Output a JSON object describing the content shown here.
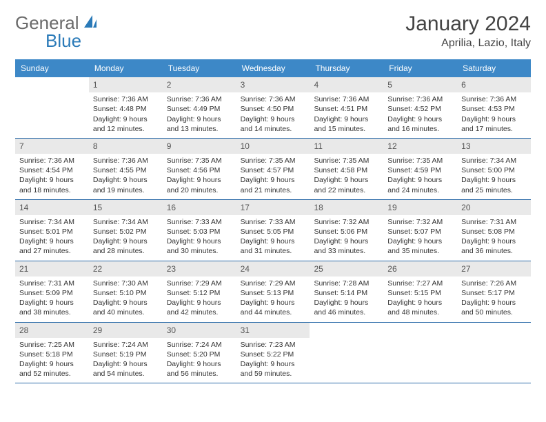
{
  "logo": {
    "text1": "General",
    "text2": "Blue"
  },
  "title": "January 2024",
  "location": "Aprilia, Lazio, Italy",
  "header_color": "#3d88c7",
  "daynum_bg": "#e9e9e9",
  "border_color": "#2a6aa8",
  "weekdays": [
    "Sunday",
    "Monday",
    "Tuesday",
    "Wednesday",
    "Thursday",
    "Friday",
    "Saturday"
  ],
  "weeks": [
    [
      {
        "n": "",
        "sr": "",
        "ss": "",
        "dl": ""
      },
      {
        "n": "1",
        "sr": "Sunrise: 7:36 AM",
        "ss": "Sunset: 4:48 PM",
        "dl": "Daylight: 9 hours and 12 minutes."
      },
      {
        "n": "2",
        "sr": "Sunrise: 7:36 AM",
        "ss": "Sunset: 4:49 PM",
        "dl": "Daylight: 9 hours and 13 minutes."
      },
      {
        "n": "3",
        "sr": "Sunrise: 7:36 AM",
        "ss": "Sunset: 4:50 PM",
        "dl": "Daylight: 9 hours and 14 minutes."
      },
      {
        "n": "4",
        "sr": "Sunrise: 7:36 AM",
        "ss": "Sunset: 4:51 PM",
        "dl": "Daylight: 9 hours and 15 minutes."
      },
      {
        "n": "5",
        "sr": "Sunrise: 7:36 AM",
        "ss": "Sunset: 4:52 PM",
        "dl": "Daylight: 9 hours and 16 minutes."
      },
      {
        "n": "6",
        "sr": "Sunrise: 7:36 AM",
        "ss": "Sunset: 4:53 PM",
        "dl": "Daylight: 9 hours and 17 minutes."
      }
    ],
    [
      {
        "n": "7",
        "sr": "Sunrise: 7:36 AM",
        "ss": "Sunset: 4:54 PM",
        "dl": "Daylight: 9 hours and 18 minutes."
      },
      {
        "n": "8",
        "sr": "Sunrise: 7:36 AM",
        "ss": "Sunset: 4:55 PM",
        "dl": "Daylight: 9 hours and 19 minutes."
      },
      {
        "n": "9",
        "sr": "Sunrise: 7:35 AM",
        "ss": "Sunset: 4:56 PM",
        "dl": "Daylight: 9 hours and 20 minutes."
      },
      {
        "n": "10",
        "sr": "Sunrise: 7:35 AM",
        "ss": "Sunset: 4:57 PM",
        "dl": "Daylight: 9 hours and 21 minutes."
      },
      {
        "n": "11",
        "sr": "Sunrise: 7:35 AM",
        "ss": "Sunset: 4:58 PM",
        "dl": "Daylight: 9 hours and 22 minutes."
      },
      {
        "n": "12",
        "sr": "Sunrise: 7:35 AM",
        "ss": "Sunset: 4:59 PM",
        "dl": "Daylight: 9 hours and 24 minutes."
      },
      {
        "n": "13",
        "sr": "Sunrise: 7:34 AM",
        "ss": "Sunset: 5:00 PM",
        "dl": "Daylight: 9 hours and 25 minutes."
      }
    ],
    [
      {
        "n": "14",
        "sr": "Sunrise: 7:34 AM",
        "ss": "Sunset: 5:01 PM",
        "dl": "Daylight: 9 hours and 27 minutes."
      },
      {
        "n": "15",
        "sr": "Sunrise: 7:34 AM",
        "ss": "Sunset: 5:02 PM",
        "dl": "Daylight: 9 hours and 28 minutes."
      },
      {
        "n": "16",
        "sr": "Sunrise: 7:33 AM",
        "ss": "Sunset: 5:03 PM",
        "dl": "Daylight: 9 hours and 30 minutes."
      },
      {
        "n": "17",
        "sr": "Sunrise: 7:33 AM",
        "ss": "Sunset: 5:05 PM",
        "dl": "Daylight: 9 hours and 31 minutes."
      },
      {
        "n": "18",
        "sr": "Sunrise: 7:32 AM",
        "ss": "Sunset: 5:06 PM",
        "dl": "Daylight: 9 hours and 33 minutes."
      },
      {
        "n": "19",
        "sr": "Sunrise: 7:32 AM",
        "ss": "Sunset: 5:07 PM",
        "dl": "Daylight: 9 hours and 35 minutes."
      },
      {
        "n": "20",
        "sr": "Sunrise: 7:31 AM",
        "ss": "Sunset: 5:08 PM",
        "dl": "Daylight: 9 hours and 36 minutes."
      }
    ],
    [
      {
        "n": "21",
        "sr": "Sunrise: 7:31 AM",
        "ss": "Sunset: 5:09 PM",
        "dl": "Daylight: 9 hours and 38 minutes."
      },
      {
        "n": "22",
        "sr": "Sunrise: 7:30 AM",
        "ss": "Sunset: 5:10 PM",
        "dl": "Daylight: 9 hours and 40 minutes."
      },
      {
        "n": "23",
        "sr": "Sunrise: 7:29 AM",
        "ss": "Sunset: 5:12 PM",
        "dl": "Daylight: 9 hours and 42 minutes."
      },
      {
        "n": "24",
        "sr": "Sunrise: 7:29 AM",
        "ss": "Sunset: 5:13 PM",
        "dl": "Daylight: 9 hours and 44 minutes."
      },
      {
        "n": "25",
        "sr": "Sunrise: 7:28 AM",
        "ss": "Sunset: 5:14 PM",
        "dl": "Daylight: 9 hours and 46 minutes."
      },
      {
        "n": "26",
        "sr": "Sunrise: 7:27 AM",
        "ss": "Sunset: 5:15 PM",
        "dl": "Daylight: 9 hours and 48 minutes."
      },
      {
        "n": "27",
        "sr": "Sunrise: 7:26 AM",
        "ss": "Sunset: 5:17 PM",
        "dl": "Daylight: 9 hours and 50 minutes."
      }
    ],
    [
      {
        "n": "28",
        "sr": "Sunrise: 7:25 AM",
        "ss": "Sunset: 5:18 PM",
        "dl": "Daylight: 9 hours and 52 minutes."
      },
      {
        "n": "29",
        "sr": "Sunrise: 7:24 AM",
        "ss": "Sunset: 5:19 PM",
        "dl": "Daylight: 9 hours and 54 minutes."
      },
      {
        "n": "30",
        "sr": "Sunrise: 7:24 AM",
        "ss": "Sunset: 5:20 PM",
        "dl": "Daylight: 9 hours and 56 minutes."
      },
      {
        "n": "31",
        "sr": "Sunrise: 7:23 AM",
        "ss": "Sunset: 5:22 PM",
        "dl": "Daylight: 9 hours and 59 minutes."
      },
      {
        "n": "",
        "sr": "",
        "ss": "",
        "dl": ""
      },
      {
        "n": "",
        "sr": "",
        "ss": "",
        "dl": ""
      },
      {
        "n": "",
        "sr": "",
        "ss": "",
        "dl": ""
      }
    ]
  ]
}
